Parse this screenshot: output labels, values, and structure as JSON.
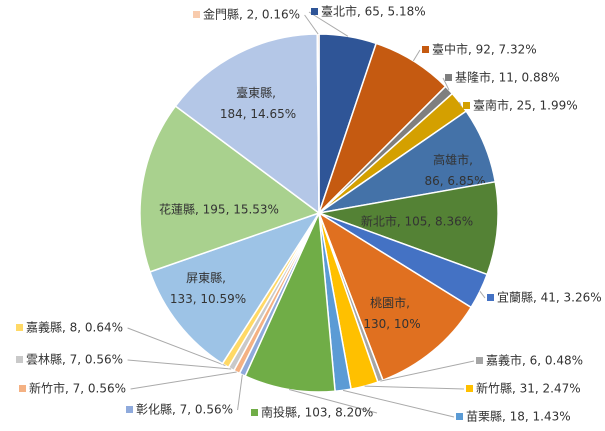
{
  "chart_data": {
    "type": "pie",
    "categories": [
      "臺北市",
      "臺中市",
      "基隆市",
      "臺南市",
      "高雄市",
      "新北市",
      "宜蘭縣",
      "桃園市",
      "嘉義市",
      "新竹縣",
      "苗栗縣",
      "南投縣",
      "彰化縣",
      "新竹市",
      "雲林縣",
      "嘉義縣",
      "屏東縣",
      "花蓮縣",
      "臺東縣",
      "金門縣"
    ],
    "values": [
      65,
      92,
      11,
      25,
      86,
      105,
      41,
      130,
      6,
      31,
      18,
      103,
      7,
      7,
      7,
      8,
      133,
      195,
      184,
      2
    ],
    "value_labels": [
      "臺北市, 65, 5.18%",
      "臺中市, 92, 7.32%",
      "基隆市, 11, 0.88%",
      "臺南市, 25, 1.99%",
      "高雄市, 86, 6.85%",
      "新北市, 105, 8.36%",
      "宜蘭縣, 41, 3.26%",
      "桃園市, 130, 10%",
      "嘉義市, 6, 0.48%",
      "新竹縣, 31, 2.47%",
      "苗栗縣, 18, 1.43%",
      "南投縣, 103, 8.20%",
      "彰化縣, 7, 0.56%",
      "新竹市, 7, 0.56%",
      "雲林縣, 7, 0.56%",
      "嘉義縣, 8, 0.64%",
      "屏東縣, 133, 10.59%",
      "花蓮縣, 195, 15.53%",
      "臺東縣, 184, 14.65%",
      "金門縣, 2, 0.16%"
    ],
    "colors": [
      "#2f5597",
      "#c55a11",
      "#7f7f7f",
      "#d4a000",
      "#4472a8",
      "#548235",
      "#4472c4",
      "#e07020",
      "#a5a5a5",
      "#ffc000",
      "#5b9bd5",
      "#70ad47",
      "#8faadc",
      "#f4b183",
      "#c9c9c9",
      "#ffd966",
      "#9dc3e6",
      "#a9d18e",
      "#b4c7e7",
      "#f8cbad"
    ]
  }
}
